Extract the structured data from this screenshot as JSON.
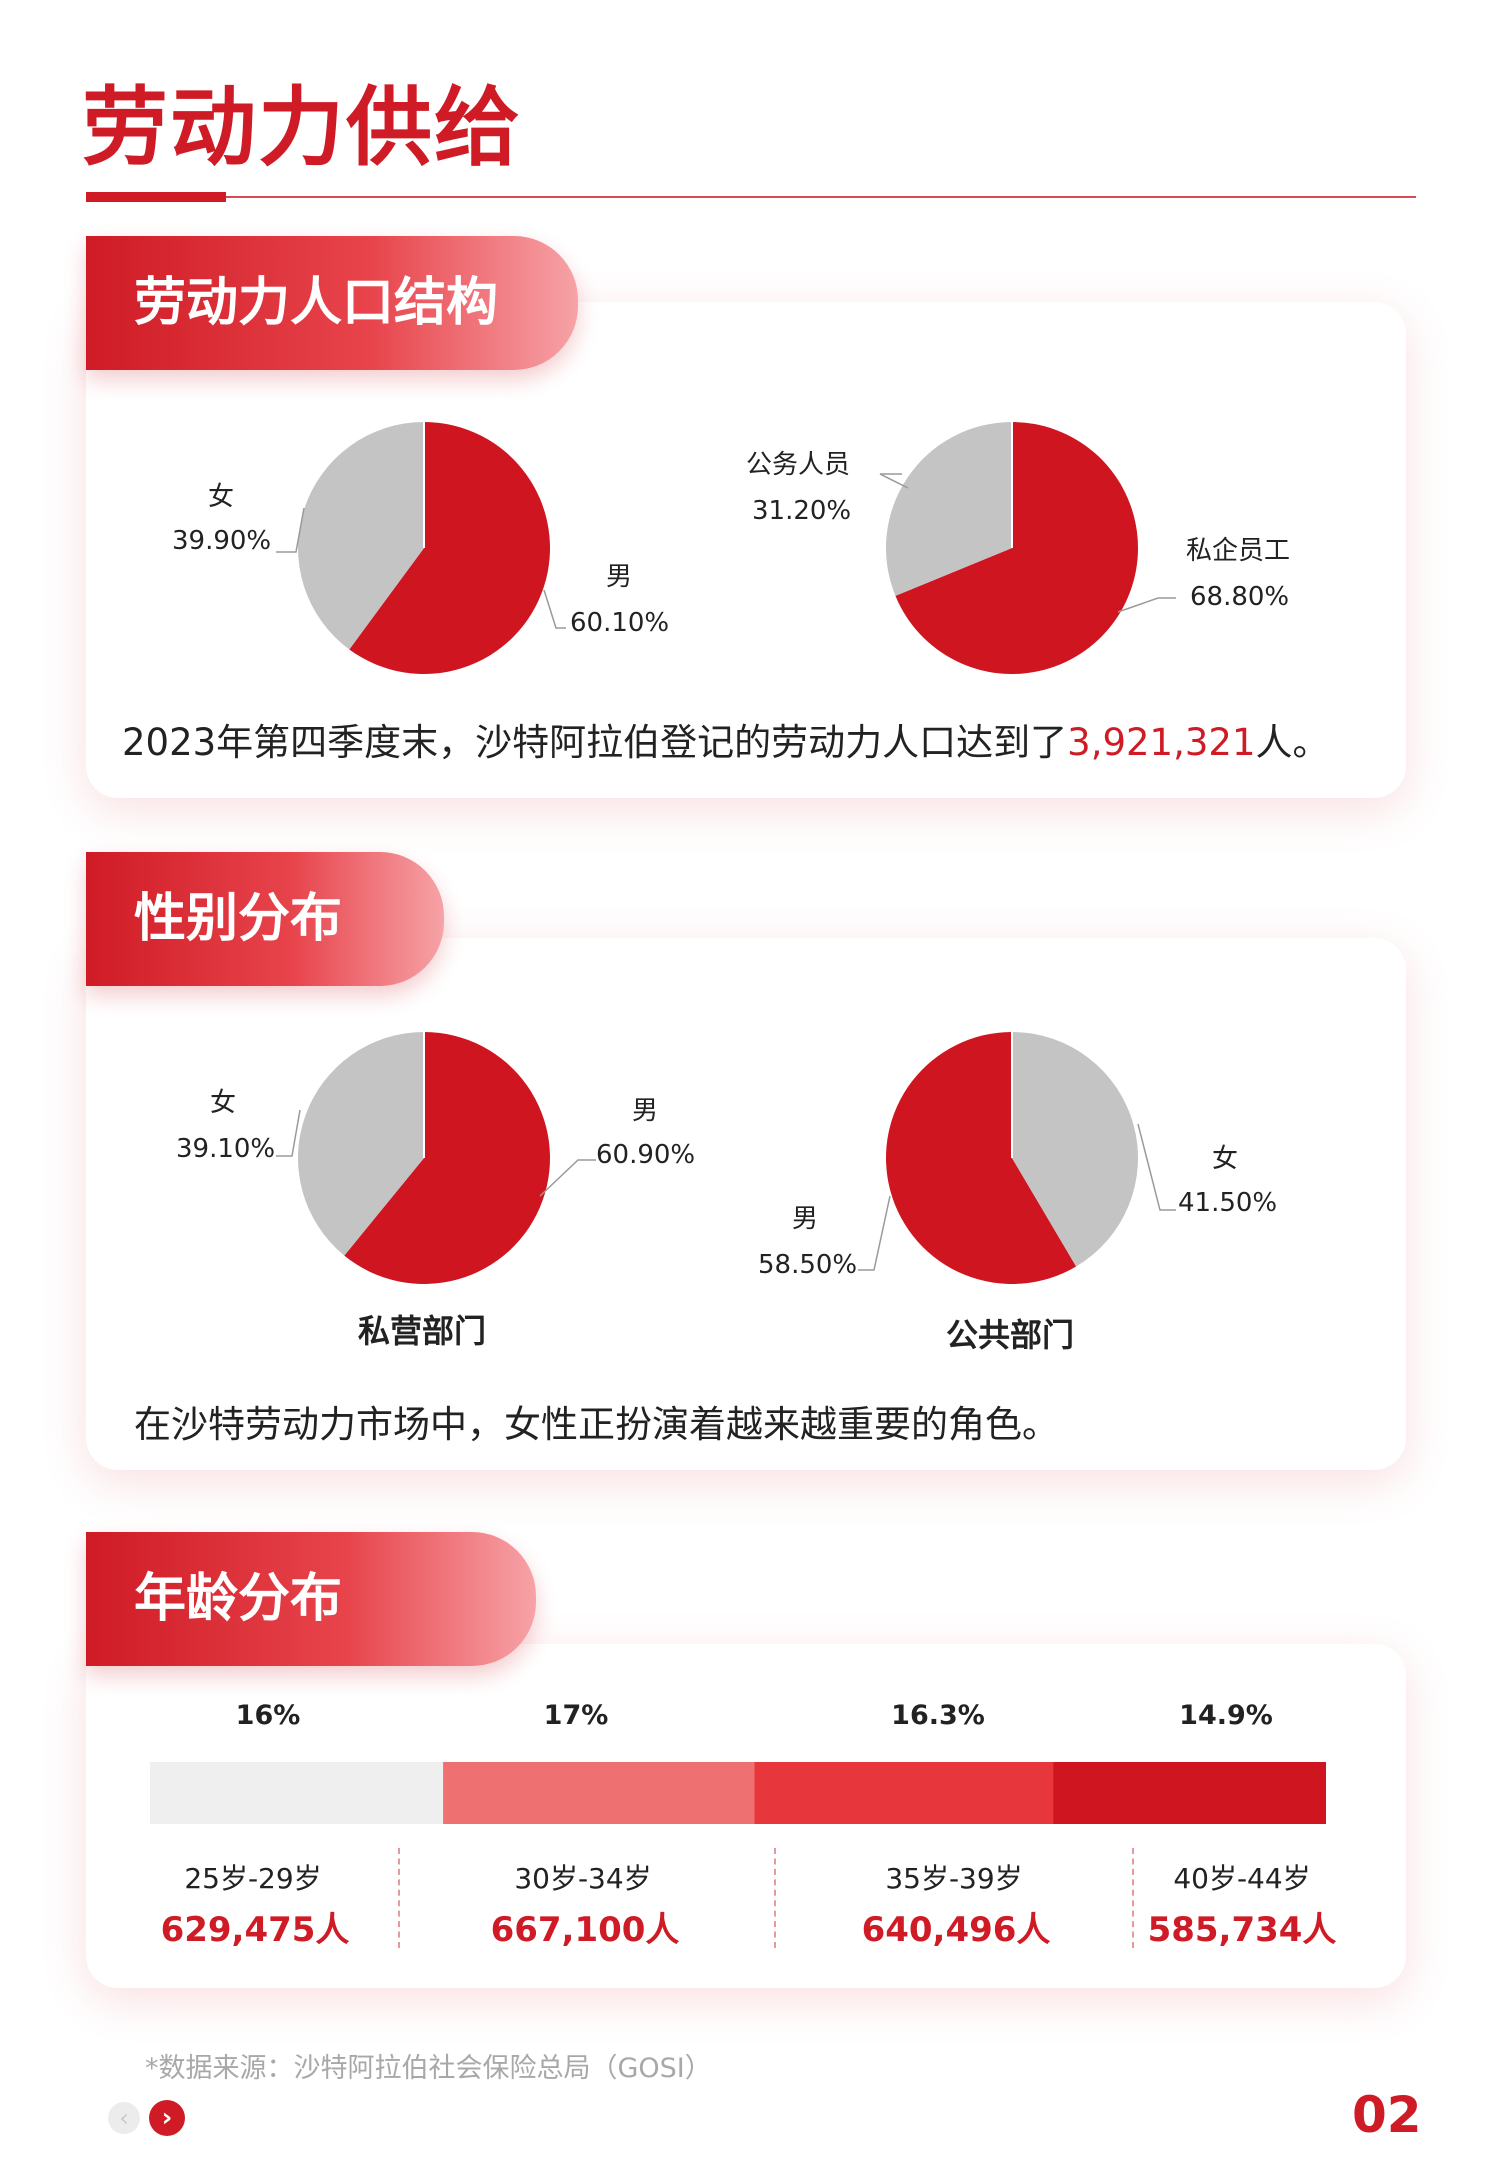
{
  "page": {
    "title": "劳动力供给",
    "source": "*数据来源：沙特阿拉伯社会保险总局（GOSI）",
    "page_number": "02",
    "prev_icon": "‹",
    "next_icon": "›"
  },
  "colors": {
    "primary_red": "#cf1b25",
    "male": "#cf1520",
    "female": "#c4c4c4",
    "private": "#cf1520",
    "public": "#c4c4c4"
  },
  "section1": {
    "tab": "劳动力人口结构",
    "sentence_prefix": "2023年第四季度末，沙特阿拉伯登记的劳动力人口达到了",
    "sentence_number": "3,921,321",
    "sentence_suffix": "人。"
  },
  "section2": {
    "tab": "性别分布",
    "sentence": "在沙特劳动力市场中，女性正扮演着越来越重要的角色。"
  },
  "section3": {
    "tab": "年龄分布"
  },
  "chart_data": [
    {
      "type": "pie",
      "slices": [
        {
          "label": "男",
          "value": 60.1,
          "display": "60.10%"
        },
        {
          "label": "女",
          "value": 39.9,
          "display": "39.90%"
        }
      ]
    },
    {
      "type": "pie",
      "slices": [
        {
          "label": "私企员工",
          "value": 68.8,
          "display": "68.80%"
        },
        {
          "label": "公务人员",
          "value": 31.2,
          "display": "31.20%"
        }
      ]
    },
    {
      "type": "pie",
      "title": "私营部门",
      "slices": [
        {
          "label": "男",
          "value": 60.9,
          "display": "60.90%"
        },
        {
          "label": "女",
          "value": 39.1,
          "display": "39.10%"
        }
      ]
    },
    {
      "type": "pie",
      "title": "公共部门",
      "slices": [
        {
          "label": "男",
          "value": 58.5,
          "display": "58.50%"
        },
        {
          "label": "女",
          "value": 41.5,
          "display": "41.50%"
        }
      ]
    },
    {
      "type": "bar",
      "orientation": "horizontal-stacked",
      "categories": [
        "25岁-29岁",
        "30岁-34岁",
        "35岁-39岁",
        "40岁-44岁"
      ],
      "values": [
        16,
        17,
        16.3,
        14.9
      ],
      "percent_labels": [
        "16%",
        "17%",
        "16.3%",
        "14.9%"
      ],
      "counts": [
        "629,475人",
        "667,100人",
        "640,496人",
        "585,734人"
      ],
      "colors": [
        "#efefef",
        "#ef7070",
        "#e8363d",
        "#cf1520"
      ]
    }
  ]
}
